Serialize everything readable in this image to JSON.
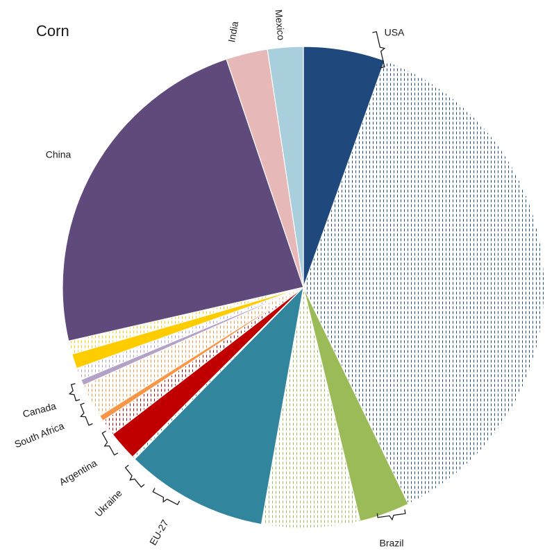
{
  "chart_data": {
    "type": "pie",
    "title": "Corn",
    "legend": "none",
    "slices": [
      {
        "label": "USA",
        "value": 5.5,
        "color": "#1f497d",
        "fill": "solid"
      },
      {
        "label": "USA",
        "value": 37.5,
        "color": "#1f497d",
        "fill": "hatched"
      },
      {
        "label": "Brazil",
        "value": 3.4,
        "color": "#9bbb59",
        "fill": "solid"
      },
      {
        "label": "Brazil",
        "value": 6.6,
        "color": "#9bbb59",
        "fill": "hatched"
      },
      {
        "label": "EU-27",
        "value": 9.6,
        "color": "#31859c",
        "fill": "solid"
      },
      {
        "label": "EU-27",
        "value": 0.2,
        "color": "#31859c",
        "fill": "hatched"
      },
      {
        "label": "Ukraine",
        "value": 2.0,
        "color": "#c00000",
        "fill": "solid"
      },
      {
        "label": "Ukraine",
        "value": 1.1,
        "color": "#c00000",
        "fill": "hatched"
      },
      {
        "label": "Argentina",
        "value": 0.4,
        "color": "#f79646",
        "fill": "solid"
      },
      {
        "label": "Argentina",
        "value": 2.3,
        "color": "#f79646",
        "fill": "hatched"
      },
      {
        "label": "South Africa",
        "value": 0.4,
        "color": "#b3a2c7",
        "fill": "solid"
      },
      {
        "label": "South Africa",
        "value": 0.8,
        "color": "#b3a2c7",
        "fill": "hatched"
      },
      {
        "label": "Canada",
        "value": 1.0,
        "color": "#ffcc00",
        "fill": "solid"
      },
      {
        "label": "Canada",
        "value": 0.9,
        "color": "#ffcc00",
        "fill": "hatched"
      },
      {
        "label": "China",
        "value": 23.5,
        "color": "#604a7b",
        "fill": "solid"
      },
      {
        "label": "India",
        "value": 2.8,
        "color": "#e6b9b8",
        "fill": "solid"
      },
      {
        "label": "Mexico",
        "value": 2.4,
        "color": "#a9cfdc",
        "fill": "solid"
      }
    ],
    "labels": [
      {
        "text": "USA"
      },
      {
        "text": "Brazil"
      },
      {
        "text": "EU-27"
      },
      {
        "text": "Ukraine"
      },
      {
        "text": "Argentina"
      },
      {
        "text": "South Africa"
      },
      {
        "text": "Canada"
      },
      {
        "text": "China"
      },
      {
        "text": "India"
      },
      {
        "text": "Mexico"
      }
    ]
  }
}
